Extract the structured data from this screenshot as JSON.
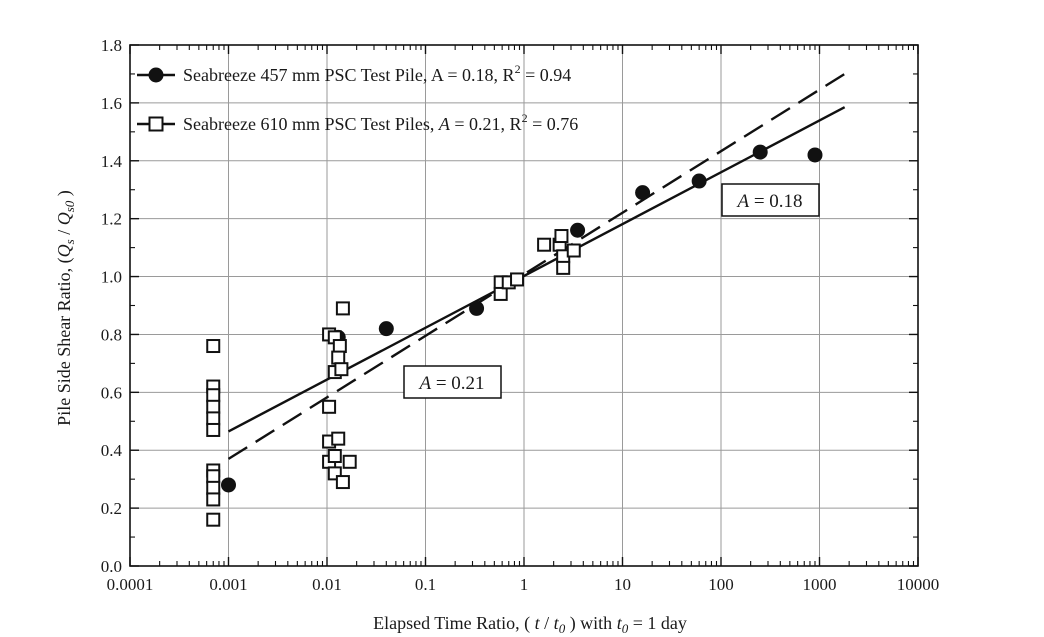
{
  "chart_data": {
    "type": "scatter",
    "title": "",
    "xlabel": "Elapsed Time Ratio, ( t / t0 ) with t0 = 1 day",
    "ylabel": "Pile Side Shear Ratio, (Qs / Qs0 )",
    "x_scale": "log",
    "xlim": [
      0.0001,
      10000
    ],
    "ylim": [
      0.0,
      1.8
    ],
    "x_ticks": [
      "0.0001",
      "0.001",
      "0.01",
      "0.1",
      "1",
      "10",
      "100",
      "1000",
      "10000"
    ],
    "y_ticks": [
      "0.0",
      "0.2",
      "0.4",
      "0.6",
      "0.8",
      "1.0",
      "1.2",
      "1.4",
      "1.6",
      "1.8"
    ],
    "grid": true,
    "legend_position": "top-left",
    "series": [
      {
        "name": "Seabreeze 457 mm PSC Test Pile, A = 0.18, R² = 0.94",
        "marker": "filled-circle",
        "points": [
          [
            0.001,
            0.28
          ],
          [
            0.013,
            0.79
          ],
          [
            0.04,
            0.82
          ],
          [
            0.33,
            0.89
          ],
          [
            3.5,
            1.16
          ],
          [
            16,
            1.29
          ],
          [
            60,
            1.33
          ],
          [
            250,
            1.43
          ],
          [
            900,
            1.42
          ]
        ]
      },
      {
        "name": "Seabreeze 610 mm PSC Test Piles, A = 0.21, R² = 0.76",
        "marker": "open-square",
        "points": [
          [
            0.0007,
            0.76
          ],
          [
            0.0007,
            0.62
          ],
          [
            0.0007,
            0.59
          ],
          [
            0.0007,
            0.55
          ],
          [
            0.0007,
            0.51
          ],
          [
            0.0007,
            0.47
          ],
          [
            0.0007,
            0.33
          ],
          [
            0.0007,
            0.31
          ],
          [
            0.0007,
            0.27
          ],
          [
            0.0007,
            0.23
          ],
          [
            0.0007,
            0.16
          ],
          [
            0.0105,
            0.8
          ],
          [
            0.012,
            0.79
          ],
          [
            0.0145,
            0.89
          ],
          [
            0.0135,
            0.76
          ],
          [
            0.013,
            0.72
          ],
          [
            0.012,
            0.67
          ],
          [
            0.014,
            0.68
          ],
          [
            0.0105,
            0.55
          ],
          [
            0.0105,
            0.43
          ],
          [
            0.013,
            0.44
          ],
          [
            0.0105,
            0.36
          ],
          [
            0.012,
            0.38
          ],
          [
            0.012,
            0.32
          ],
          [
            0.0145,
            0.29
          ],
          [
            0.017,
            0.36
          ],
          [
            0.58,
            0.98
          ],
          [
            0.58,
            0.94
          ],
          [
            0.7,
            0.98
          ],
          [
            0.85,
            0.99
          ],
          [
            1.6,
            1.11
          ],
          [
            2.3,
            1.11
          ],
          [
            2.4,
            1.14
          ],
          [
            2.5,
            1.07
          ],
          [
            2.5,
            1.03
          ],
          [
            3.2,
            1.09
          ]
        ]
      }
    ],
    "trend_lines": [
      {
        "name": "A = 0.18",
        "style": "solid",
        "x": [
          0.001,
          1800
        ],
        "y": [
          0.465,
          1.585
        ]
      },
      {
        "name": "A = 0.21",
        "style": "dashed",
        "x": [
          0.001,
          1800
        ],
        "y": [
          0.37,
          1.7
        ]
      }
    ],
    "annotations": [
      {
        "text": "A = 0.21",
        "x": 0.14,
        "y": 0.645
      },
      {
        "text": "A = 0.18",
        "x": 90,
        "y": 1.26
      }
    ],
    "legend": [
      {
        "label_text": "Seabreeze 457 mm PSC Test Pile, A = 0.18, R² = 0.94"
      },
      {
        "label_text": "Seabreeze 610 mm PSC Test Piles, A = 0.21, R² = 0.76"
      }
    ]
  }
}
